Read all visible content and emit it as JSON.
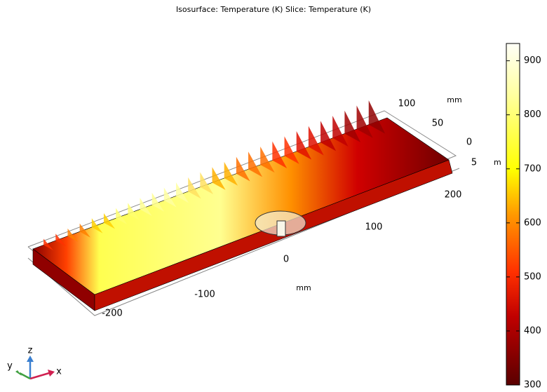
{
  "title": "Isosurface: Temperature (K)  Slice: Temperature (K)",
  "axes": {
    "x": {
      "ticks": [
        -200,
        -100,
        0,
        100,
        200
      ],
      "unit": "mm"
    },
    "y": {
      "ticks": [
        100,
        50,
        0
      ],
      "unit": "mm"
    },
    "z": {
      "ticks": [
        5
      ],
      "unit": "mm"
    }
  },
  "colorbar": {
    "range": [
      300,
      932
    ],
    "ticks": [
      300,
      400,
      500,
      600,
      700,
      800,
      900
    ]
  },
  "triad": {
    "x": "x",
    "y": "y",
    "z": "z"
  }
}
